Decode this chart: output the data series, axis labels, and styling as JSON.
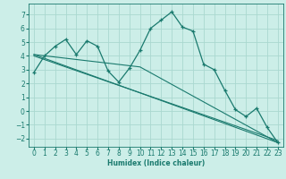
{
  "xlabel": "Humidex (Indice chaleur)",
  "bg_color": "#cceee8",
  "grid_color": "#aad8d0",
  "line_color": "#1a7a6e",
  "xlim": [
    -0.5,
    23.5
  ],
  "ylim": [
    -2.6,
    7.8
  ],
  "yticks": [
    -2,
    -1,
    0,
    1,
    2,
    3,
    4,
    5,
    6,
    7
  ],
  "xtick_labels": [
    "0",
    "1",
    "2",
    "3",
    "4",
    "5",
    "6",
    "7",
    "8",
    "9",
    "10",
    "11",
    "12",
    "13",
    "14",
    "15",
    "16",
    "17",
    "18",
    "19",
    "20",
    "21",
    "22",
    "23"
  ],
  "data_line": {
    "x": [
      0,
      1,
      2,
      3,
      4,
      5,
      6,
      7,
      8,
      9,
      10,
      11,
      12,
      13,
      14,
      15,
      16,
      17,
      18,
      19,
      20,
      21,
      22,
      23
    ],
    "y": [
      2.8,
      4.0,
      4.7,
      5.2,
      4.1,
      5.1,
      4.7,
      2.9,
      2.1,
      3.1,
      4.4,
      6.0,
      6.6,
      7.2,
      6.1,
      5.8,
      3.4,
      3.0,
      1.5,
      0.1,
      -0.4,
      0.2,
      -1.2,
      -2.3
    ]
  },
  "trend_line1": {
    "x": [
      0,
      23
    ],
    "y": [
      4.1,
      -2.3
    ]
  },
  "trend_line2": {
    "x": [
      0,
      23
    ],
    "y": [
      4.0,
      -2.15
    ]
  },
  "trend_line3": {
    "x": [
      0,
      10,
      23
    ],
    "y": [
      4.1,
      3.2,
      -2.3
    ]
  }
}
